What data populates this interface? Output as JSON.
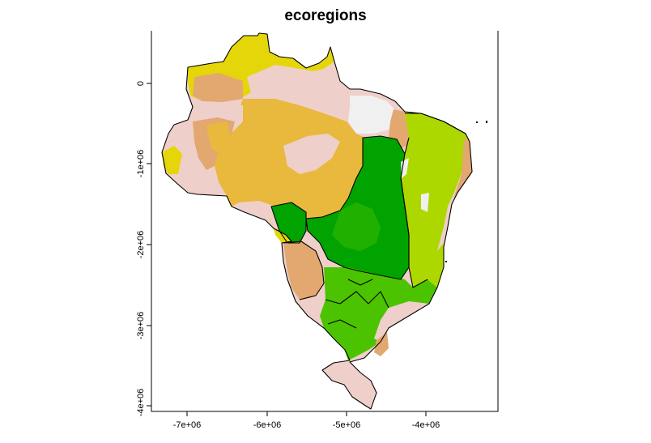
{
  "plot": {
    "title": "ecoregions"
  },
  "axes": {
    "x": {
      "ticks": [
        "-7e+06",
        "-6e+06",
        "-5e+06",
        "-4e+06"
      ]
    },
    "y": {
      "ticks": [
        "0",
        "-1e+06",
        "-2e+06",
        "-3e+06",
        "-4e+06"
      ]
    }
  },
  "colors": {
    "yellow": "#e5d60a",
    "gold": "#e8b93c",
    "tan": "#e2a870",
    "pink": "#efcfca",
    "white": "#f0f0f0",
    "lime": "#acd800",
    "bright_green": "#4cc300",
    "green": "#20b000",
    "dark_green": "#00a300",
    "border": "#000000"
  }
}
